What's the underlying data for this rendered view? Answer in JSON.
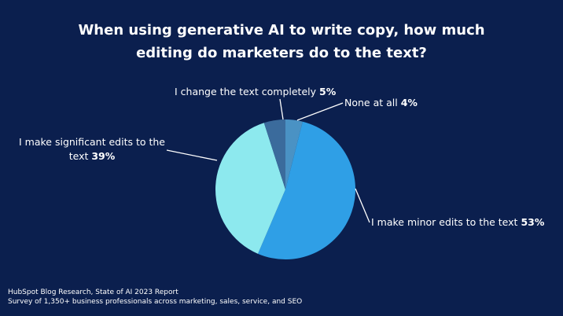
{
  "chart_data": {
    "type": "pie",
    "title": "When using generative AI to write copy, how much editing do marketers do to the text?",
    "categories": [
      "None at all",
      "I make minor edits to the text",
      "I make significant edits to the text",
      "I change the text completely"
    ],
    "values": [
      4,
      53,
      39,
      5
    ],
    "value_labels": [
      "4%",
      "53%",
      "39%",
      "5%"
    ],
    "colors": [
      "#4a92c4",
      "#2f9fe6",
      "#8de9ee",
      "#3b6b9c"
    ],
    "notes": [
      "HubSpot Blog Research, State of AI 2023 Report",
      "Survey of 1,350+ business professionals across marketing, sales, service, and SEO"
    ]
  }
}
